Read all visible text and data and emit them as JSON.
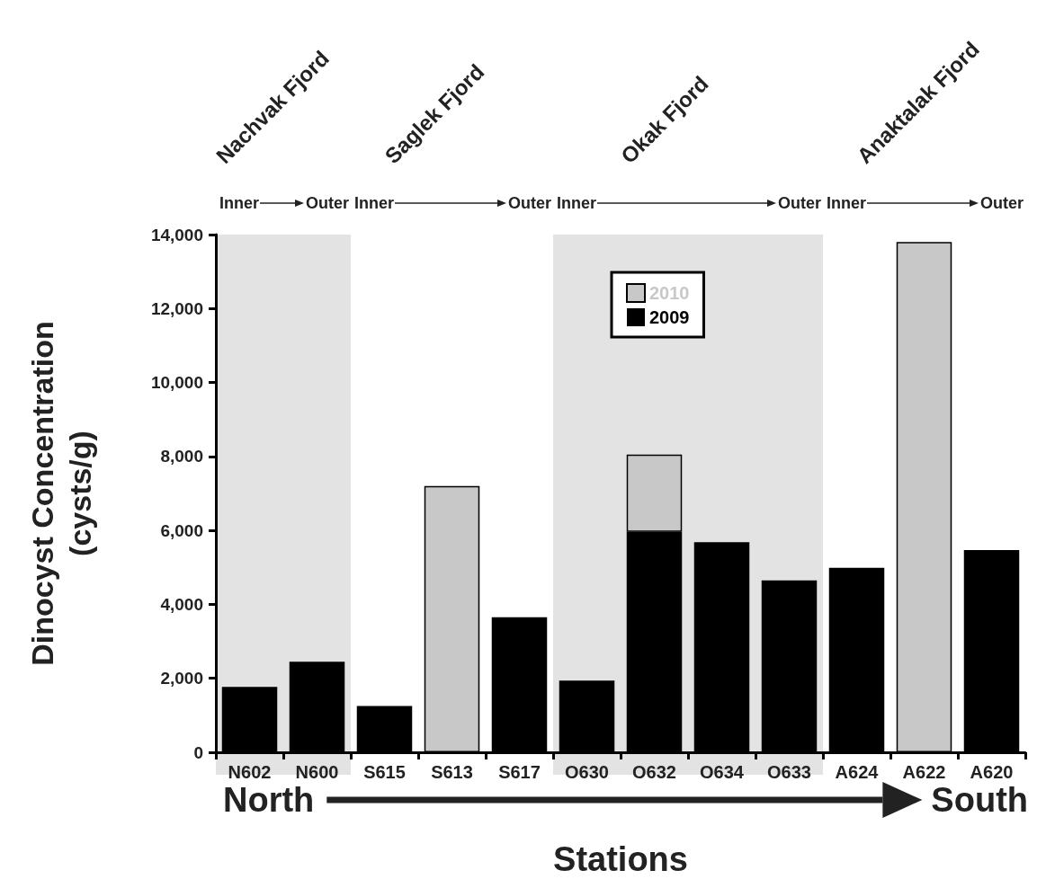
{
  "chart_data": {
    "type": "bar",
    "stacked": true,
    "xlabel": "Stations",
    "ylabel": "Dinocyst Concentration\n(cysts/g)",
    "categories": [
      "N602",
      "N600",
      "S615",
      "S613",
      "S617",
      "O630",
      "O632",
      "O634",
      "O633",
      "A624",
      "A622",
      "A620"
    ],
    "series": [
      {
        "name": "2009",
        "color": "#000000",
        "values": [
          1770,
          2450,
          1250,
          null,
          3650,
          1940,
          5960,
          5680,
          4650,
          4990,
          null,
          5470
        ]
      },
      {
        "name": "2010",
        "color": "#c8c8c8",
        "values": [
          null,
          null,
          null,
          7200,
          null,
          null,
          2090,
          null,
          null,
          null,
          13800,
          null
        ]
      }
    ],
    "ylim": [
      0,
      14000
    ],
    "yticks": [
      0,
      {
        "value": 2000,
        "label": "2,000"
      },
      {
        "value": 4000,
        "label": "4,000"
      },
      {
        "value": 6000,
        "label": "6,000"
      },
      {
        "value": 8000,
        "label": "8,000"
      },
      {
        "value": 10000,
        "label": "10,000"
      },
      {
        "value": 12000,
        "label": "12,000"
      },
      {
        "value": 14000,
        "label": "14,000"
      }
    ],
    "bands": [
      {
        "axis": "x",
        "from": "N602",
        "to": "N600",
        "color": "#e3e3e3"
      },
      {
        "axis": "x",
        "from": "O630",
        "to": "O633",
        "color": "#e3e3e3"
      }
    ],
    "annotations": [
      "Nachvak Fjord",
      "Saglek Fjord",
      "Okak Fjord",
      "Anaktalak Fjord",
      "Inner",
      "Outer",
      "Inner",
      "Outer",
      "Inner",
      "Outer",
      "Inner",
      "Outer",
      "North",
      "South"
    ],
    "legend": "top",
    "grid": false
  }
}
